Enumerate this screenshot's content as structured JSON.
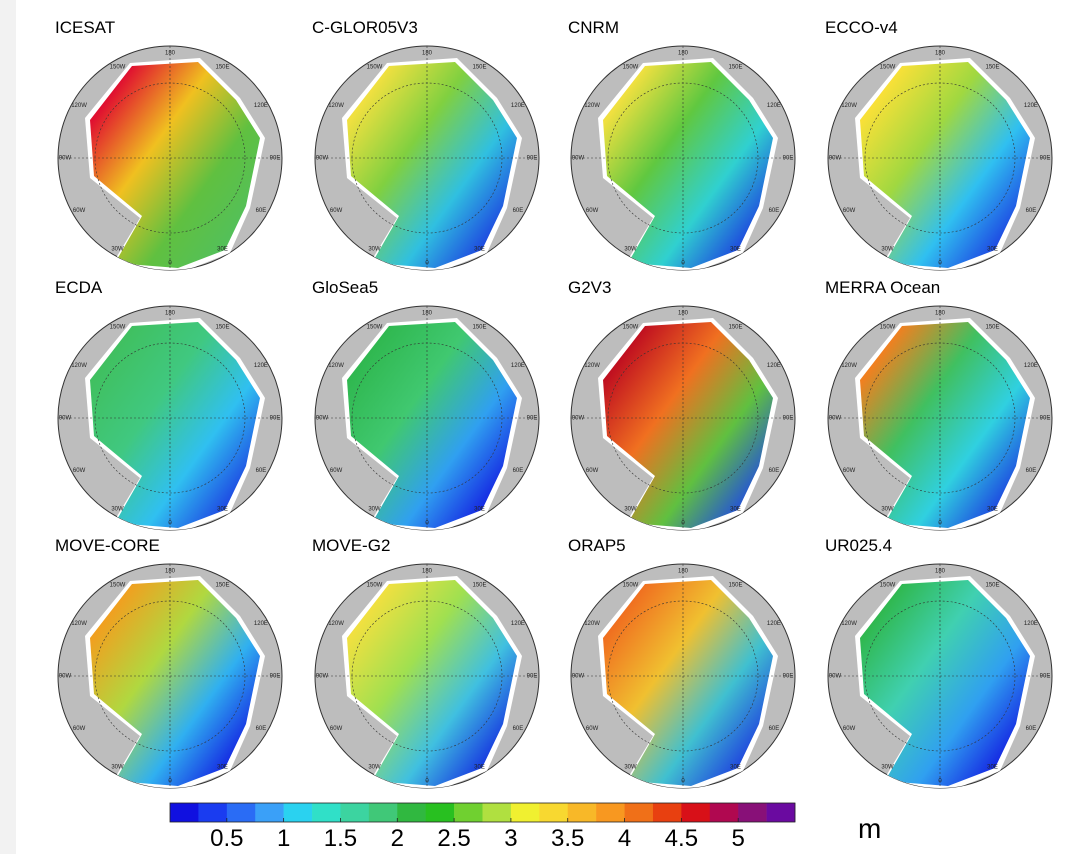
{
  "panels": [
    {
      "title": "ICESAT"
    },
    {
      "title": "C-GLOR05V3"
    },
    {
      "title": "CNRM"
    },
    {
      "title": "ECCO-v4"
    },
    {
      "title": "ECDA"
    },
    {
      "title": "GloSea5"
    },
    {
      "title": "G2V3"
    },
    {
      "title": "MERRA Ocean"
    },
    {
      "title": "MOVE-CORE"
    },
    {
      "title": "MOVE-G2"
    },
    {
      "title": "ORAP5"
    },
    {
      "title": "UR025.4"
    }
  ],
  "longitude_labels": [
    "180",
    "150W",
    "150E",
    "120W",
    "120E",
    "90W",
    "90E",
    "60W",
    "60E",
    "30W",
    "30E",
    "0"
  ],
  "colorbar": {
    "lim": [
      0,
      5.5
    ],
    "ticks": [
      0.5,
      1,
      1.5,
      2,
      2.5,
      3,
      3.5,
      4,
      4.5,
      5
    ],
    "colors": [
      "#1010e0",
      "#1a3cf0",
      "#2a6cf5",
      "#3aa0f8",
      "#2ad2f0",
      "#30e0c8",
      "#3cd4a0",
      "#40c878",
      "#30b840",
      "#28c020",
      "#70d030",
      "#b0e040",
      "#f0f030",
      "#f8d830",
      "#f8b828",
      "#f89820",
      "#f07018",
      "#e84010",
      "#d81018",
      "#b00850",
      "#881078",
      "#6a0aa0"
    ],
    "unit": "m"
  }
}
